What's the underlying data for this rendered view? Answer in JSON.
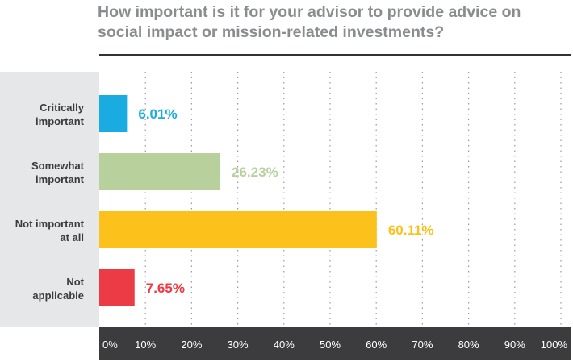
{
  "chart_data": {
    "type": "bar",
    "orientation": "horizontal",
    "title_lines": [
      "How important is it for your advisor to provide advice on",
      "social impact or mission-related investments?"
    ],
    "categories": [
      [
        "Critically",
        "important"
      ],
      [
        "Somewhat",
        "important"
      ],
      [
        "Not important",
        "at all"
      ],
      [
        "Not",
        "applicable"
      ]
    ],
    "values": [
      6.01,
      26.23,
      60.11,
      7.65
    ],
    "value_labels": [
      "6.01%",
      "26.23%",
      "60.11%",
      "7.65%"
    ],
    "colors": [
      "#1aace0",
      "#b7d09c",
      "#fcc21b",
      "#ec3b45"
    ],
    "xlim": [
      0,
      100
    ],
    "ticks": [
      0,
      10,
      20,
      30,
      40,
      50,
      60,
      70,
      80,
      90,
      100
    ],
    "tick_labels": [
      "0%",
      "10%",
      "20%",
      "30%",
      "40%",
      "50%",
      "60%",
      "70%",
      "80%",
      "90%",
      "100%"
    ],
    "grid": "vertical dotted",
    "xlabel": "",
    "ylabel": ""
  }
}
